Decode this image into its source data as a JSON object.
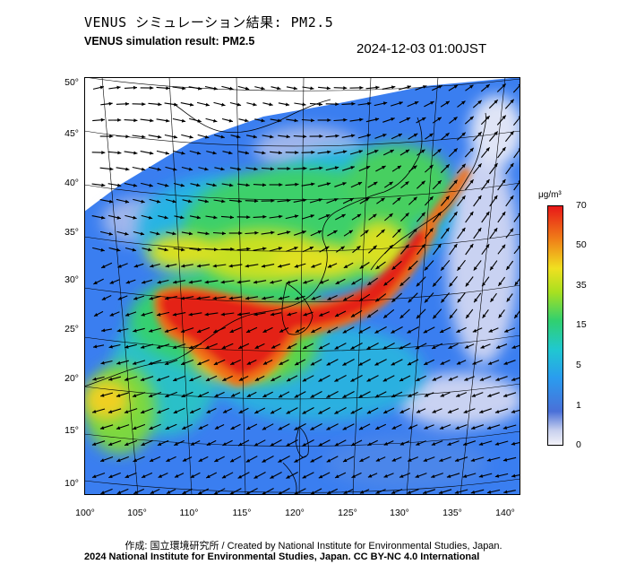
{
  "header": {
    "title_jp": "VENUS シミュレーション結果: PM2.5",
    "title_en": "VENUS simulation result: PM2.5",
    "timestamp": "2024-12-03 01:00JST"
  },
  "map": {
    "lat_labels": [
      "50°",
      "45°",
      "40°",
      "35°",
      "30°",
      "25°",
      "20°",
      "15°",
      "10°"
    ],
    "lon_labels": [
      "100°",
      "105°",
      "110°",
      "115°",
      "120°",
      "125°",
      "130°",
      "135°",
      "140°"
    ],
    "variable": "PM2.5",
    "wind_vectors": "shown"
  },
  "colorbar": {
    "unit": "μg/m³",
    "ticks": [
      "70",
      "50",
      "35",
      "15",
      "5",
      "1",
      "0"
    ],
    "colors": [
      "#e81818",
      "#f08018",
      "#f0e020",
      "#30d070",
      "#20c8d0",
      "#2a9cef",
      "#4a70d8",
      "#f2f2f8"
    ]
  },
  "footer": {
    "credit_jp": "作成: 国立環境研究所 / Created by National Institute for Environmental Studies, Japan.",
    "credit_en": "2024 National Institute for Environmental Studies, Japan. CC BY-NC 4.0 International"
  }
}
